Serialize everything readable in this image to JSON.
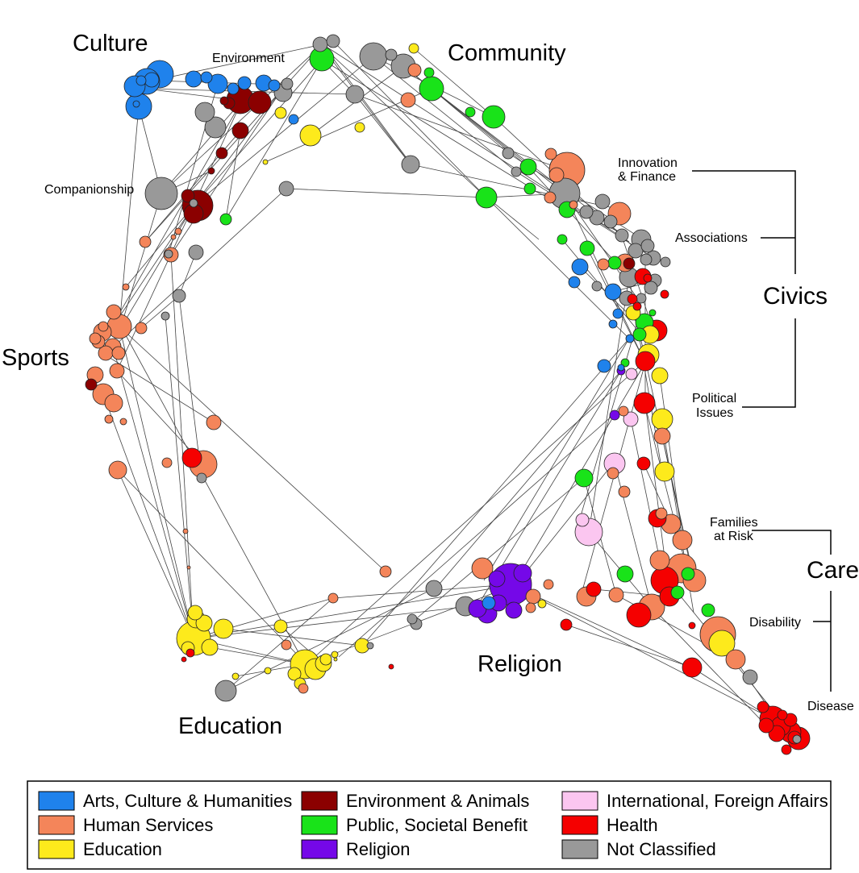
{
  "colors": {
    "arts": "#1f82ec",
    "human": "#f4855a",
    "education": "#fdea1c",
    "environment": "#8b0000",
    "public": "#19e319",
    "religion": "#7508e8",
    "international": "#fbc6f0",
    "health": "#f50000",
    "unclassified": "#999999"
  },
  "regions": {
    "culture": "Culture",
    "community": "Community",
    "sports": "Sports",
    "education": "Education",
    "religion": "Religion",
    "civics": "Civics",
    "care": "Care"
  },
  "sublabels": {
    "environment": "Environment",
    "companionship": "Companionship",
    "innovation_1": "Innovation",
    "innovation_2": "& Finance",
    "associations": "Associations",
    "political_1": "Political",
    "political_2": "Issues",
    "families_1": "Families",
    "families_2": "at Risk",
    "disability": "Disability",
    "disease": "Disease"
  },
  "legend": [
    {
      "key": "arts",
      "label": "Arts, Culture & Humanities"
    },
    {
      "key": "human",
      "label": "Human Services"
    },
    {
      "key": "education",
      "label": "Education"
    },
    {
      "key": "environment",
      "label": "Environment & Animals"
    },
    {
      "key": "public",
      "label": "Public, Societal Benefit"
    },
    {
      "key": "religion",
      "label": "Religion"
    },
    {
      "key": "international",
      "label": "International, Foreign Affairs"
    },
    {
      "key": "health",
      "label": "Health"
    },
    {
      "key": "unclassified",
      "label": "Not Classified"
    }
  ]
}
